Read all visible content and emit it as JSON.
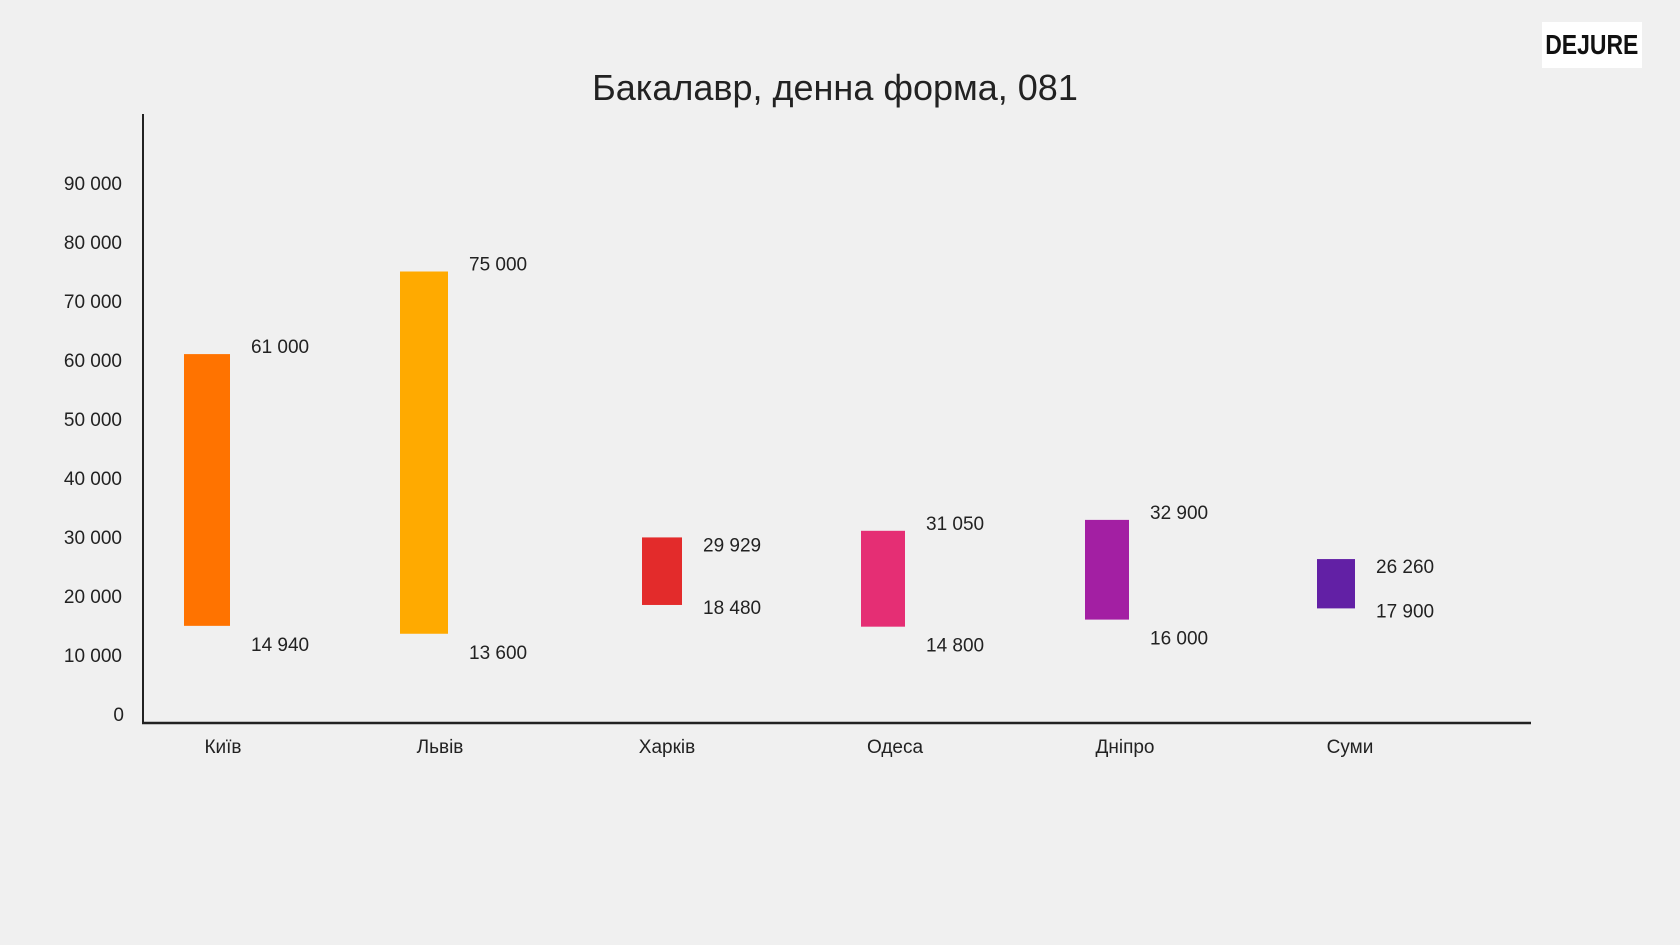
{
  "logo": {
    "text": "DEJURE"
  },
  "chart_data": {
    "type": "bar",
    "subtype": "floating-range",
    "title": "Бакалавр, денна форма, 081",
    "xlabel": "",
    "ylabel": "",
    "ylim": [
      0,
      100000
    ],
    "yticks": [
      0,
      10000,
      20000,
      30000,
      40000,
      50000,
      60000,
      70000,
      80000,
      90000
    ],
    "ytick_labels": [
      "0",
      "10 000",
      "20 000",
      "30 000",
      "40 000",
      "50 000",
      "60 000",
      "70 000",
      "80 000",
      "90 000"
    ],
    "grid": false,
    "legend": "none",
    "categories": [
      "Київ",
      "Львів",
      "Харків",
      "Одеса",
      "Дніпро",
      "Суми"
    ],
    "min_values": [
      14940,
      13600,
      18480,
      14800,
      16000,
      17900
    ],
    "max_values": [
      61000,
      75000,
      29929,
      31050,
      32900,
      26260
    ],
    "min_labels": [
      "14 940",
      "13 600",
      "18 480",
      "14 800",
      "16 000",
      "17 900"
    ],
    "max_labels": [
      "61 000",
      "75 000",
      "29 929",
      "31 050",
      "32 900",
      "26 260"
    ],
    "colors": [
      "#ff7300",
      "#ffaa00",
      "#e32b2b",
      "#e52e74",
      "#a31fa3",
      "#6220a5"
    ]
  }
}
